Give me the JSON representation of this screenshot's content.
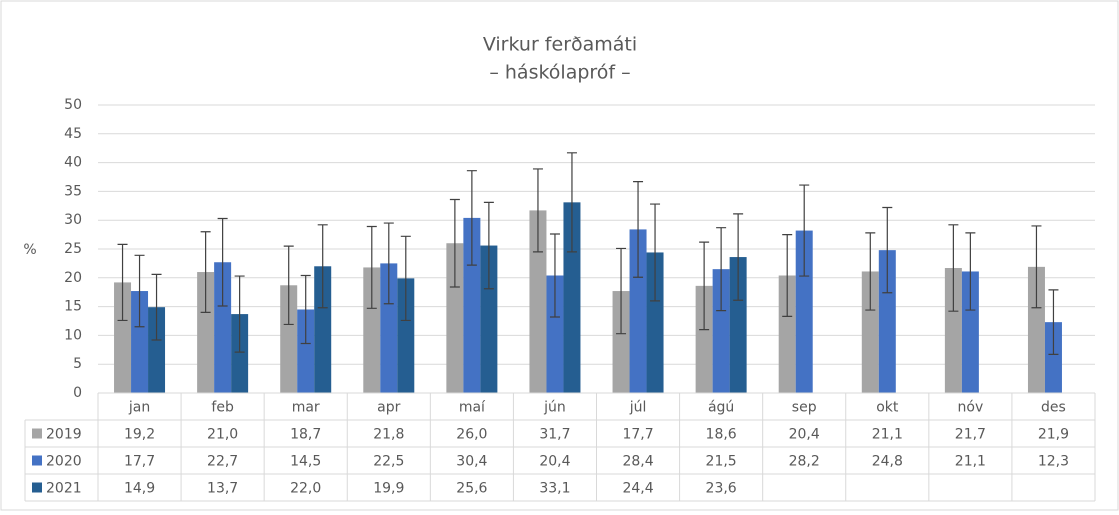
{
  "chart_data": {
    "type": "bar",
    "title": "Virkur ferðamáti",
    "subtitle": "– háskólapróf –",
    "y_label": "%",
    "categories": [
      "jan",
      "feb",
      "mar",
      "apr",
      "maí",
      "jún",
      "júl",
      "ágú",
      "sep",
      "okt",
      "nóv",
      "des"
    ],
    "ylim": [
      0,
      50
    ],
    "yticks": [
      0,
      5,
      10,
      15,
      20,
      25,
      30,
      35,
      40,
      45,
      50
    ],
    "grid": true,
    "series": [
      {
        "name": "2019",
        "color": "#a5a5a5",
        "values": [
          19.2,
          21.0,
          18.7,
          21.8,
          26.0,
          31.7,
          17.7,
          18.6,
          20.4,
          21.1,
          21.7,
          21.9
        ],
        "value_labels": [
          "19,2",
          "21,0",
          "18,7",
          "21,8",
          "26,0",
          "31,7",
          "17,7",
          "18,6",
          "20,4",
          "21,1",
          "21,7",
          "21,9"
        ],
        "errors": [
          6.6,
          7.0,
          6.8,
          7.1,
          7.6,
          7.2,
          7.4,
          7.6,
          7.1,
          6.7,
          7.5,
          7.1
        ]
      },
      {
        "name": "2020",
        "color": "#4472c4",
        "values": [
          17.7,
          22.7,
          14.5,
          22.5,
          30.4,
          20.4,
          28.4,
          21.5,
          28.2,
          24.8,
          21.1,
          12.3
        ],
        "value_labels": [
          "17,7",
          "22,7",
          "14,5",
          "22,5",
          "30,4",
          "20,4",
          "28,4",
          "21,5",
          "28,2",
          "24,8",
          "21,1",
          "12,3"
        ],
        "errors": [
          6.2,
          7.6,
          5.9,
          7.0,
          8.2,
          7.2,
          8.3,
          7.2,
          7.9,
          7.4,
          6.7,
          5.6
        ]
      },
      {
        "name": "2021",
        "color": "#255e91",
        "values": [
          14.9,
          13.7,
          22.0,
          19.9,
          25.6,
          33.1,
          24.4,
          23.6,
          null,
          null,
          null,
          null
        ],
        "value_labels": [
          "14,9",
          "13,7",
          "22,0",
          "19,9",
          "25,6",
          "33,1",
          "24,4",
          "23,6",
          null,
          null,
          null,
          null
        ],
        "errors": [
          5.7,
          6.6,
          7.2,
          7.3,
          7.5,
          8.6,
          8.4,
          7.5,
          null,
          null,
          null,
          null
        ]
      }
    ]
  }
}
